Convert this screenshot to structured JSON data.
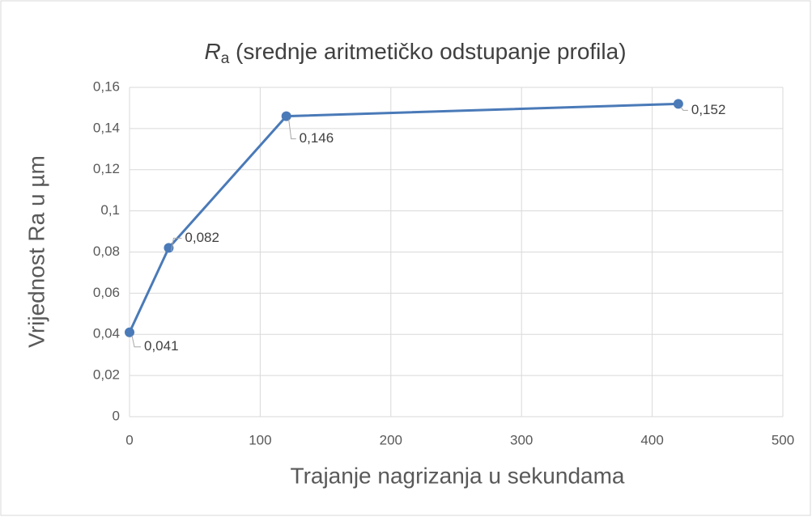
{
  "chart_data": {
    "type": "line",
    "title": "Ra (srednje aritmetičko odstupanje profila)",
    "x_label": "Trajanje nagrizanja u sekundama",
    "y_label": "Vrijednost Ra u µm",
    "x": [
      0,
      30,
      120,
      420
    ],
    "series": [
      {
        "name": "Ra",
        "color": "#4a7ab8",
        "values": [
          0.041,
          0.082,
          0.146,
          0.152
        ],
        "value_labels": [
          "0,041",
          "0,082",
          "0,146",
          "0,152"
        ]
      }
    ],
    "xlim": [
      0,
      500
    ],
    "xticks": [
      0,
      100,
      200,
      300,
      400,
      500
    ],
    "ylim": [
      0,
      0.16
    ],
    "yticks": [
      0,
      {
        "value": 0.02,
        "label": "0,02"
      },
      {
        "value": 0.04,
        "label": "0,04"
      },
      {
        "value": 0.06,
        "label": "0,06"
      },
      {
        "value": 0.08,
        "label": "0,08"
      },
      {
        "value": 0.1,
        "label": "0,1"
      },
      {
        "value": 0.12,
        "label": "0,12"
      },
      {
        "value": 0.14,
        "label": "0,14"
      },
      {
        "value": 0.16,
        "label": "0,16"
      }
    ],
    "grid": true
  }
}
